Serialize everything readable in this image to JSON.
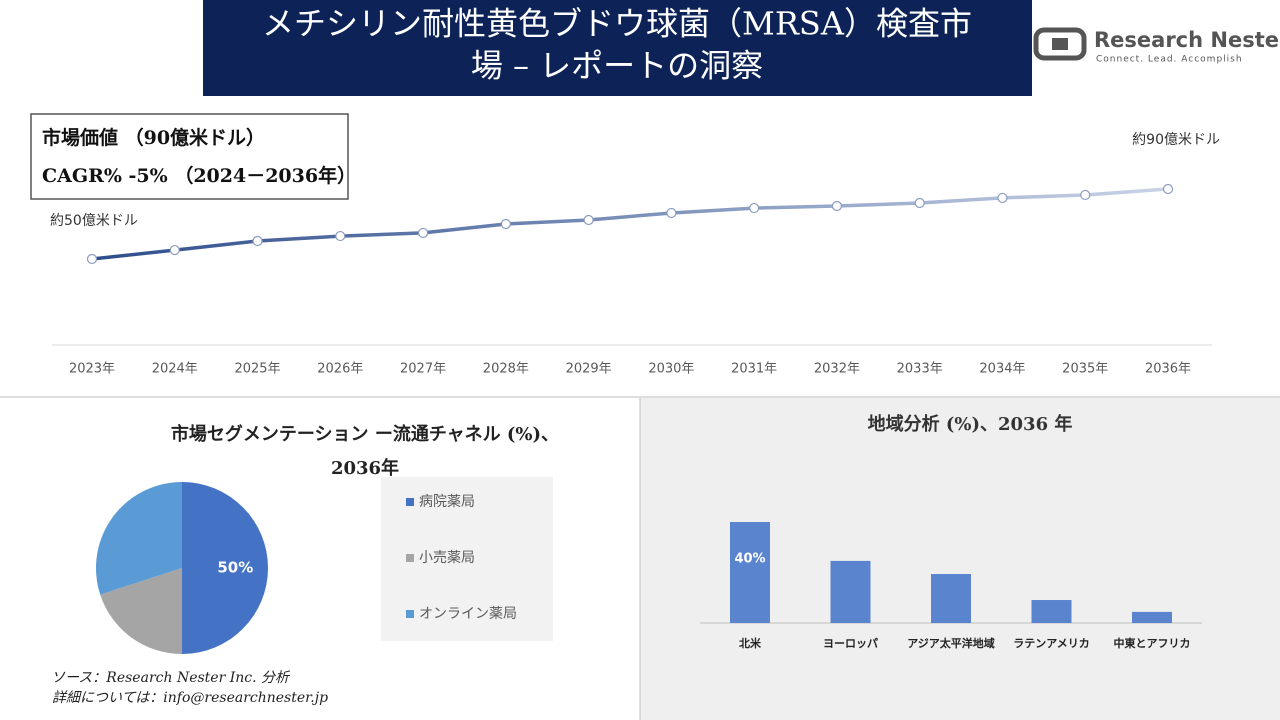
{
  "header": {
    "title_line1": "メチシリン耐性黄色ブドウ球菌（MRSA）検査市",
    "title_line2": "場 – レポートの洞察"
  },
  "logo": {
    "name": "Research Nester",
    "tagline": "Connect. Lead. Accomplish"
  },
  "info_box": {
    "market_value": "市場価値 （90億米ドル）",
    "cagr": "CAGR% -5% （2024－2036年）"
  },
  "chart_data": [
    {
      "type": "line",
      "categories": [
        "2023年",
        "2024年",
        "2025年",
        "2026年",
        "2027年",
        "2028年",
        "2029年",
        "2030年",
        "2031年",
        "2032年",
        "2033年",
        "2034年",
        "2035年",
        "2036年"
      ],
      "values": [
        50,
        55.1,
        60.3,
        63.1,
        64.9,
        70,
        72.3,
        76.3,
        79.1,
        80.3,
        82,
        84.9,
        86.6,
        90
      ],
      "colors": [
        "#2e4d8c",
        "#c8d3e6"
      ],
      "annotations": [
        "約50億米ドル",
        "約90億米ドル"
      ]
    },
    {
      "type": "pie",
      "title": "市場セグメンテーション ー流通チャネル (%)、2036年",
      "categories": [
        "病院薬局",
        "小売薬局",
        "オンライン薬局"
      ],
      "values": [
        50,
        20,
        30
      ],
      "value_labels": [
        "50%",
        null,
        null
      ],
      "colors": [
        "#4472c4",
        "#a5a5a5",
        "#5b9bd5"
      ]
    },
    {
      "type": "bar",
      "title": "地域分析 (%)、2036 年",
      "categories": [
        "北米",
        "ヨーロッパ",
        "アジア太平洋地域",
        "ラテンアメリカ",
        "中東とアフリカ"
      ],
      "values": [
        40,
        24.6,
        19.4,
        9.1,
        4.4
      ],
      "value_labels": [
        "40%",
        null,
        null,
        null,
        null
      ],
      "color": "#5b84cf"
    }
  ],
  "footer": {
    "source": "ソース：Research Nester Inc. 分析",
    "contact": "詳細については：info@researchnester.jp"
  }
}
